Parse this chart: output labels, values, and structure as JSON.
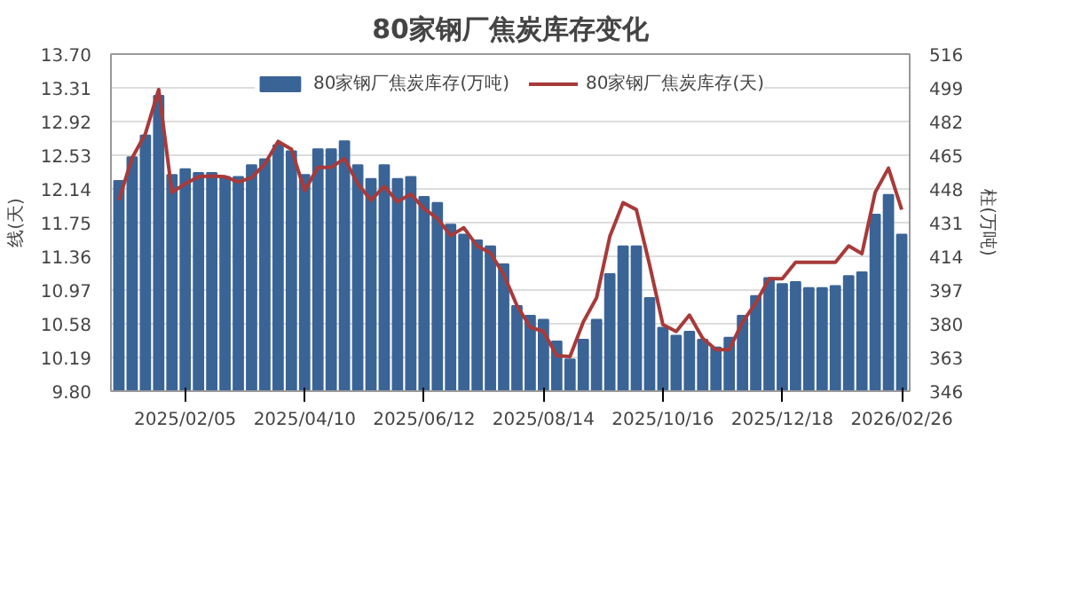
{
  "chart_data": {
    "type": "bar",
    "title": "80家钢厂焦炭库存变化",
    "ylabel": "线(天)",
    "y2label": "柱(万吨)",
    "categories": [
      null,
      null,
      null,
      null,
      null,
      "2025/02/05",
      null,
      null,
      null,
      null,
      null,
      null,
      null,
      null,
      "2025/04/10",
      null,
      null,
      null,
      null,
      null,
      null,
      null,
      null,
      "2025/06/12",
      null,
      null,
      null,
      null,
      null,
      null,
      null,
      null,
      "2025/08/14",
      null,
      null,
      null,
      null,
      null,
      null,
      null,
      null,
      "2025/10/16",
      null,
      null,
      null,
      null,
      null,
      null,
      null,
      null,
      "2025/12/18",
      null,
      null,
      null,
      null,
      null,
      null,
      null,
      null,
      "2026/02/26"
    ],
    "series": [
      {
        "name": "80家钢厂焦炭库存(万吨)",
        "axis": "y2",
        "color": "#3b6496",
        "values": [
          452,
          464,
          475,
          495,
          455,
          458,
          456,
          456,
          454,
          454,
          460,
          463,
          470,
          467,
          455,
          468,
          468,
          472,
          460,
          453,
          460,
          453,
          454,
          444,
          441,
          430,
          425,
          422,
          419,
          410,
          389,
          384,
          382,
          371,
          362,
          372,
          382,
          405,
          419,
          419,
          393,
          378,
          374,
          376,
          372,
          368,
          373,
          384,
          394,
          403,
          400,
          401,
          398,
          398,
          399,
          404,
          406,
          435,
          445,
          425
        ]
      },
      {
        "name": "80家钢厂焦炭库存(天)",
        "type": "line",
        "color": "#a83a3a",
        "values": [
          12.01,
          12.5,
          12.78,
          13.29,
          12.1,
          12.2,
          12.28,
          12.29,
          12.28,
          12.22,
          12.27,
          12.43,
          12.69,
          12.6,
          12.12,
          12.39,
          12.39,
          12.49,
          12.2,
          12.01,
          12.17,
          11.99,
          12.08,
          11.91,
          11.8,
          11.6,
          11.69,
          11.48,
          11.4,
          11.15,
          10.79,
          10.54,
          10.49,
          10.21,
          10.2,
          10.6,
          10.88,
          11.59,
          11.98,
          11.9,
          11.26,
          10.57,
          10.49,
          10.68,
          10.41,
          10.28,
          10.28,
          10.6,
          10.82,
          11.1,
          11.1,
          11.29,
          11.29,
          11.29,
          11.29,
          11.48,
          11.39,
          12.1,
          12.38,
          11.9
        ]
      }
    ],
    "ylim": [
      9.8,
      13.7
    ],
    "yticks": [
      {
        "value": 9.8,
        "label": "9.80"
      },
      10.19,
      10.58,
      10.97,
      11.36,
      11.75,
      12.14,
      12.53,
      12.92,
      13.31,
      {
        "value": 13.7,
        "label": "13.70"
      }
    ],
    "y2lim": [
      346,
      516
    ],
    "y2ticks": [
      346,
      363,
      380,
      397,
      414,
      431,
      448,
      465,
      482,
      499,
      516
    ],
    "grid": "y",
    "legend": "top",
    "marker": "none",
    "line_style": "solid"
  }
}
